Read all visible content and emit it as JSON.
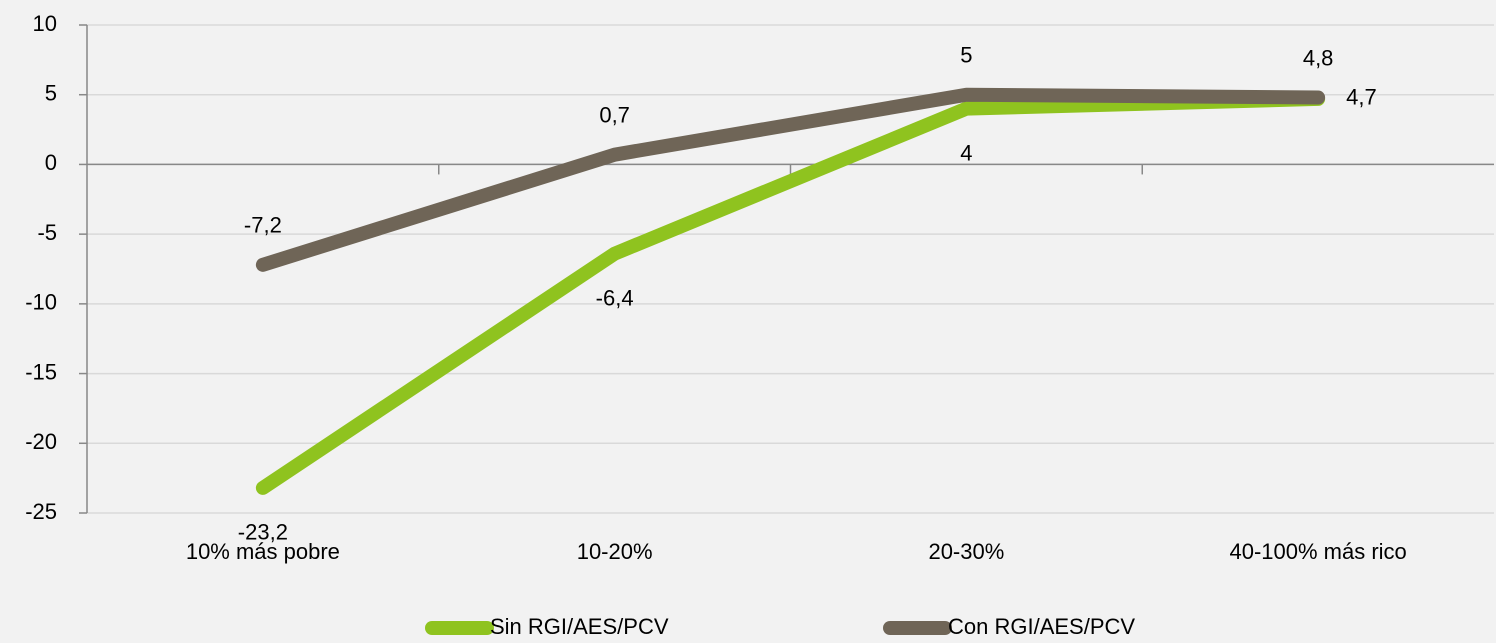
{
  "chart_data": {
    "type": "line",
    "categories": [
      "10% más pobre",
      "10-20%",
      "20-30%",
      "40-100% más rico"
    ],
    "series": [
      {
        "name": "Sin RGI/AES/PCV",
        "color": "#8fc31f",
        "values": [
          -23.2,
          -6.4,
          4,
          4.7
        ],
        "value_labels": [
          "-23,2",
          "-6,4",
          "4",
          "4,7"
        ]
      },
      {
        "name": "Con RGI/AES/PCV",
        "color": "#6f6557",
        "values": [
          -7.2,
          0.7,
          5,
          4.8
        ],
        "value_labels": [
          "-7,2",
          "0,7",
          "5",
          "4,8"
        ]
      }
    ],
    "ylim": [
      -25,
      10
    ],
    "yticks": [
      -25,
      -20,
      -15,
      -10,
      -5,
      0,
      5,
      10
    ],
    "grid": true,
    "legend": "bottom"
  }
}
